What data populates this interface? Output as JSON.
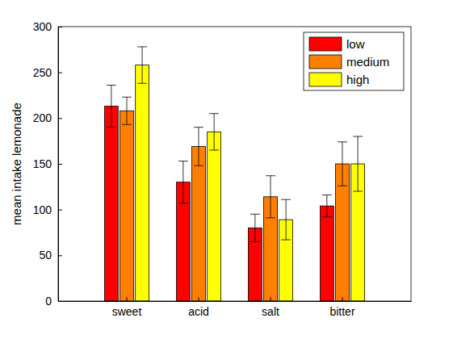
{
  "chart_data": {
    "type": "bar",
    "y_label": "mean intake lemonade",
    "categories": [
      "sweet",
      "acid",
      "salt",
      "bitter"
    ],
    "series": [
      {
        "name": "low",
        "color": "#ff0000",
        "values": [
          213,
          130,
          80,
          104
        ],
        "errors": [
          23,
          23,
          15,
          12
        ]
      },
      {
        "name": "medium",
        "color": "#ff8000",
        "values": [
          208,
          169,
          114,
          150
        ],
        "errors": [
          15,
          21,
          23,
          24
        ]
      },
      {
        "name": "high",
        "color": "#ffff00",
        "values": [
          258,
          185,
          89,
          150
        ],
        "errors": [
          20,
          20,
          22,
          30
        ]
      }
    ],
    "ylim": [
      0,
      300
    ],
    "yticks": [
      0,
      50,
      100,
      150,
      200,
      250,
      300
    ],
    "grid": false,
    "legend": "northeast"
  }
}
